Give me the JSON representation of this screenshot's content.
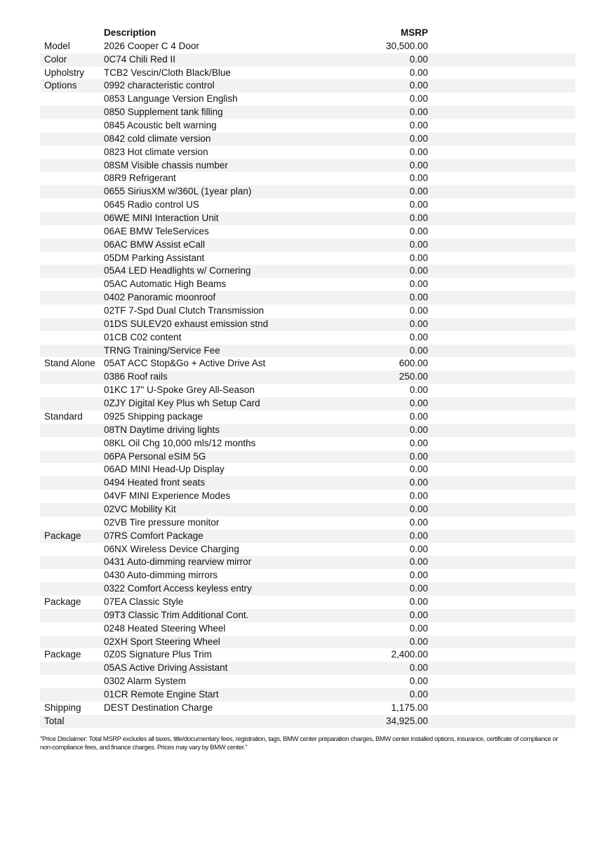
{
  "header": {
    "description": "Description",
    "msrp": "MSRP"
  },
  "rows": [
    [
      "Model",
      "2026 Cooper C 4 Door",
      "30,500.00"
    ],
    [
      "Color",
      "0C74 Chili Red II",
      "0.00"
    ],
    [
      "Upholstry",
      "TCB2 Vescin/Cloth Black/Blue",
      "0.00"
    ],
    [
      "Options",
      "0992 characteristic control",
      "0.00"
    ],
    [
      "",
      "0853 Language Version English",
      "0.00"
    ],
    [
      "",
      "0850 Supplement tank filling",
      "0.00"
    ],
    [
      "",
      "0845 Acoustic belt warning",
      "0.00"
    ],
    [
      "",
      "0842 cold climate version",
      "0.00"
    ],
    [
      "",
      "0823 Hot climate version",
      "0.00"
    ],
    [
      "",
      "08SM Visible chassis number",
      "0.00"
    ],
    [
      "",
      "08R9 Refrigerant",
      "0.00"
    ],
    [
      "",
      "0655 SiriusXM w/360L (1year plan)",
      "0.00"
    ],
    [
      "",
      "0645 Radio control US",
      "0.00"
    ],
    [
      "",
      "06WE MINI Interaction Unit",
      "0.00"
    ],
    [
      "",
      "06AE BMW TeleServices",
      "0.00"
    ],
    [
      "",
      "06AC BMW Assist eCall",
      "0.00"
    ],
    [
      "",
      "05DM Parking Assistant",
      "0.00"
    ],
    [
      "",
      "05A4 LED Headlights w/ Cornering",
      "0.00"
    ],
    [
      "",
      "05AC Automatic High Beams",
      "0.00"
    ],
    [
      "",
      "0402 Panoramic moonroof",
      "0.00"
    ],
    [
      "",
      "02TF 7-Spd Dual Clutch Transmission",
      "0.00"
    ],
    [
      "",
      "01DS SULEV20 exhaust emission stnd",
      "0.00"
    ],
    [
      "",
      "01CB C02 content",
      "0.00"
    ],
    [
      "",
      "TRNG Training/Service Fee",
      "0.00"
    ],
    [
      "Stand Alone",
      "05AT ACC Stop&Go + Active Drive Ast",
      "600.00"
    ],
    [
      "",
      "0386 Roof rails",
      "250.00"
    ],
    [
      "",
      "01KC 17\" U-Spoke Grey All-Season",
      "0.00"
    ],
    [
      "",
      "0ZJY Digital Key Plus wh Setup Card",
      "0.00"
    ],
    [
      "Standard",
      "0925 Shipping package",
      "0.00"
    ],
    [
      "",
      "08TN Daytime driving lights",
      "0.00"
    ],
    [
      "",
      "08KL Oil Chg 10,000 mls/12 months",
      "0.00"
    ],
    [
      "",
      "06PA Personal eSIM 5G",
      "0.00"
    ],
    [
      "",
      "06AD MINI Head-Up Display",
      "0.00"
    ],
    [
      "",
      "0494 Heated front seats",
      "0.00"
    ],
    [
      "",
      "04VF MINI Experience Modes",
      "0.00"
    ],
    [
      "",
      "02VC Mobility Kit",
      "0.00"
    ],
    [
      "",
      "02VB Tire pressure monitor",
      "0.00"
    ],
    [
      "Package",
      "07RS Comfort Package",
      "0.00"
    ],
    [
      "",
      "06NX Wireless Device Charging",
      "0.00"
    ],
    [
      "",
      "0431 Auto-dimming rearview mirror",
      "0.00"
    ],
    [
      "",
      "0430 Auto-dimming mirrors",
      "0.00"
    ],
    [
      "",
      "0322 Comfort Access keyless entry",
      "0.00"
    ],
    [
      "Package",
      "07EA Classic Style",
      "0.00"
    ],
    [
      "",
      "09T3 Classic Trim Additional Cont.",
      "0.00"
    ],
    [
      "",
      "0248 Heated Steering Wheel",
      "0.00"
    ],
    [
      "",
      "02XH Sport Steering Wheel",
      "0.00"
    ],
    [
      "Package",
      "0Z0S Signature Plus Trim",
      "2,400.00"
    ],
    [
      "",
      "05AS Active Driving Assistant",
      "0.00"
    ],
    [
      "",
      "0302 Alarm System",
      "0.00"
    ],
    [
      "",
      "01CR Remote Engine Start",
      "0.00"
    ],
    [
      "Shipping",
      "DEST Destination Charge",
      "1,175.00"
    ],
    [
      "Total",
      "",
      "34,925.00"
    ]
  ],
  "disclaimer": "\"Price Disclaimer: Total MSRP excludes all taxes, title/documentary fees, registration, tags, BMW center preparation charges, BMW center installed options, insurance, certificate of compliance or non-compliance fees, and finance charges. Prices may vary by BMW center.\""
}
